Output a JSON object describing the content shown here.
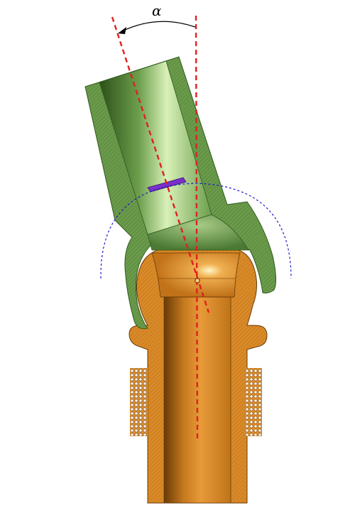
{
  "diagram": {
    "angle_label": "α",
    "colors": {
      "upper_part": "#6a9a4a",
      "upper_part_dark": "#3e6a2a",
      "lower_part": "#d98a28",
      "lower_part_dark": "#8a5010",
      "axis_line": "#e02020",
      "sweep_circle": "#1a1acc",
      "marker": "#7a30c8",
      "arrow": "#000000"
    },
    "icons": {
      "upper_part": "angled-green-tube-cross-section",
      "lower_part": "straight-orange-tube-cross-section",
      "knurl": "knurled-grip-dots",
      "pivot": "pivot-point-circle"
    }
  }
}
